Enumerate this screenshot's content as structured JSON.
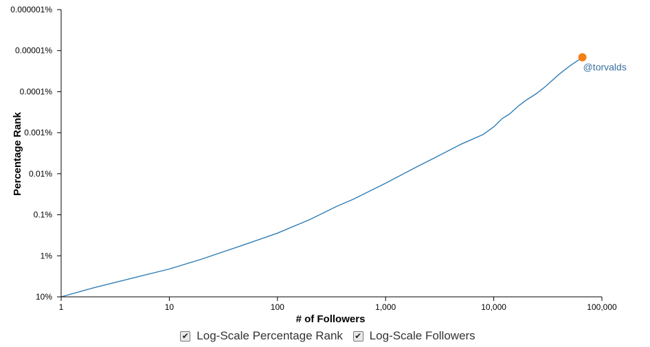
{
  "chart_data": {
    "type": "line",
    "xlabel": "# of Followers",
    "ylabel": "Percentage Rank",
    "x_scale": "log",
    "y_scale": "log",
    "y_inverted": true,
    "xlim": [
      1,
      100000
    ],
    "ylim_percent": [
      10,
      1e-06
    ],
    "x_ticks": [
      {
        "value": 1,
        "label": "1"
      },
      {
        "value": 10,
        "label": "10"
      },
      {
        "value": 100,
        "label": "100"
      },
      {
        "value": 1000,
        "label": "1,000"
      },
      {
        "value": 10000,
        "label": "10,000"
      },
      {
        "value": 100000,
        "label": "100,000"
      }
    ],
    "y_ticks": [
      {
        "value": 10,
        "label": "10%"
      },
      {
        "value": 1,
        "label": "1%"
      },
      {
        "value": 0.1,
        "label": "0.1%"
      },
      {
        "value": 0.01,
        "label": "0.01%"
      },
      {
        "value": 0.001,
        "label": "0.001%"
      },
      {
        "value": 0.0001,
        "label": "0.0001%"
      },
      {
        "value": 1e-05,
        "label": "0.00001%"
      },
      {
        "value": 1e-06,
        "label": "0.000001%"
      }
    ],
    "line_color": "#2f7db5",
    "series": [
      {
        "x": [
          1,
          2,
          5,
          10,
          20,
          50,
          100,
          200,
          350,
          500,
          1000,
          2000,
          3000,
          5000,
          8000,
          10000,
          12000,
          14000,
          17000,
          20000,
          25000,
          30000,
          40000,
          50000,
          66000
        ],
        "y": [
          10,
          6,
          3.3,
          2.1,
          1.2,
          0.53,
          0.28,
          0.13,
          0.063,
          0.042,
          0.017,
          0.0065,
          0.0038,
          0.0019,
          0.0011,
          0.00072,
          0.00045,
          0.00035,
          0.00022,
          0.00016,
          0.00011,
          7.5e-05,
          3.8e-05,
          2.4e-05,
          1.45e-05
        ]
      }
    ],
    "annotation": {
      "label": "@torvalds",
      "x": 66000,
      "y": 1.45e-05,
      "color": "#f57f17"
    }
  },
  "controls": {
    "log_y_label": "Log-Scale Percentage Rank",
    "log_y_checked": true,
    "log_x_label": "Log-Scale Followers",
    "log_x_checked": true
  },
  "checkmark_glyph": "✔"
}
